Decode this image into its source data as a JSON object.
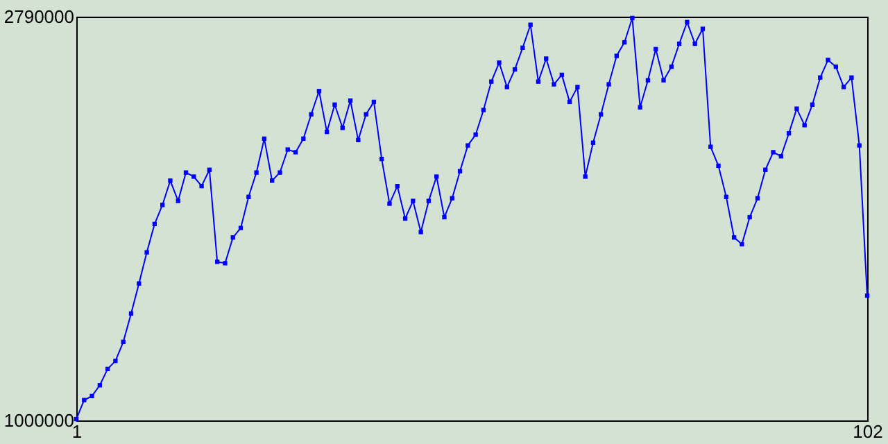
{
  "chart_data": {
    "type": "line",
    "x": [
      1,
      2,
      3,
      4,
      5,
      6,
      7,
      8,
      9,
      10,
      11,
      12,
      13,
      14,
      15,
      16,
      17,
      18,
      19,
      20,
      21,
      22,
      23,
      24,
      25,
      26,
      27,
      28,
      29,
      30,
      31,
      32,
      33,
      34,
      35,
      36,
      37,
      38,
      39,
      40,
      41,
      42,
      43,
      44,
      45,
      46,
      47,
      48,
      49,
      50,
      51,
      52,
      53,
      54,
      55,
      56,
      57,
      58,
      59,
      60,
      61,
      62,
      63,
      64,
      65,
      66,
      67,
      68,
      69,
      70,
      71,
      72,
      73,
      74,
      75,
      76,
      77,
      78,
      79,
      80,
      81,
      82,
      83,
      84,
      85,
      86,
      87,
      88,
      89,
      90,
      91,
      92,
      93,
      94,
      95,
      96,
      97,
      98,
      99,
      100,
      101,
      102
    ],
    "series": [
      {
        "color": "#0000ff",
        "values": [
          1006000,
          1090000,
          1108000,
          1156000,
          1228000,
          1264000,
          1348000,
          1474000,
          1607000,
          1745000,
          1871000,
          1955000,
          2063000,
          1973000,
          2099000,
          2081000,
          2039000,
          2111000,
          1703000,
          1697000,
          1811000,
          1853000,
          1991000,
          2099000,
          2249000,
          2063000,
          2099000,
          2201000,
          2189000,
          2249000,
          2357000,
          2460000,
          2279000,
          2400000,
          2297000,
          2418000,
          2243000,
          2357000,
          2412000,
          2159000,
          1961000,
          2039000,
          1895000,
          1973000,
          1835000,
          1973000,
          2081000,
          1901000,
          1985000,
          2105000,
          2219000,
          2267000,
          2376000,
          2502000,
          2586000,
          2478000,
          2556000,
          2652000,
          2754000,
          2502000,
          2604000,
          2490000,
          2532000,
          2412000,
          2478000,
          2081000,
          2231000,
          2357000,
          2490000,
          2616000,
          2676000,
          2784000,
          2388000,
          2508000,
          2646000,
          2508000,
          2568000,
          2670000,
          2766000,
          2670000,
          2736000,
          2213000,
          2129000,
          1991000,
          1811000,
          1781000,
          1901000,
          1985000,
          2111000,
          2189000,
          2171000,
          2273000,
          2382000,
          2309000,
          2400000,
          2520000,
          2598000,
          2568000,
          2478000,
          2520000,
          2219000,
          1553000
        ]
      }
    ],
    "xlim": [
      1,
      102
    ],
    "xticks": [
      1,
      102
    ],
    "ylim": [
      1000000,
      2790000
    ],
    "yticks": [
      1000000,
      2790000
    ],
    "marker": "square",
    "line_style": "solid",
    "grid": false,
    "legend": false
  }
}
